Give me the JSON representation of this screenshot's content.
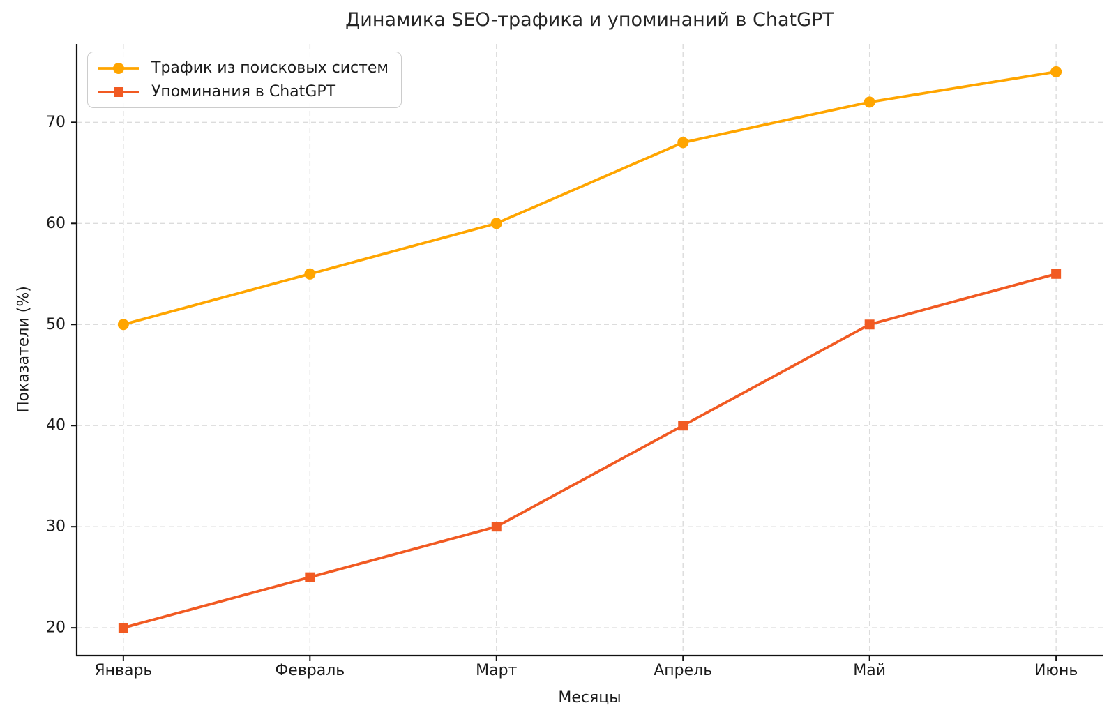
{
  "chart_data": {
    "type": "line",
    "title": "Динамика SEO-трафика и упоминаний в ChatGPT",
    "xlabel": "Месяцы",
    "ylabel": "Показатели (%)",
    "categories": [
      "Январь",
      "Февраль",
      "Март",
      "Апрель",
      "Май",
      "Июнь"
    ],
    "series": [
      {
        "name": "Трафик из поисковых систем",
        "values": [
          50,
          55,
          60,
          68,
          72,
          75
        ],
        "color": "#FFA500",
        "marker": "circle"
      },
      {
        "name": "Упоминания в ChatGPT",
        "values": [
          20,
          25,
          30,
          40,
          50,
          55
        ],
        "color": "#F15A22",
        "marker": "square"
      }
    ],
    "yticks": [
      20,
      30,
      40,
      50,
      60,
      70
    ],
    "ylim": [
      17.25,
      77.75
    ],
    "xlim": [
      -0.25,
      5.25
    ],
    "grid": "dashed",
    "legend_position": "upper-left"
  }
}
